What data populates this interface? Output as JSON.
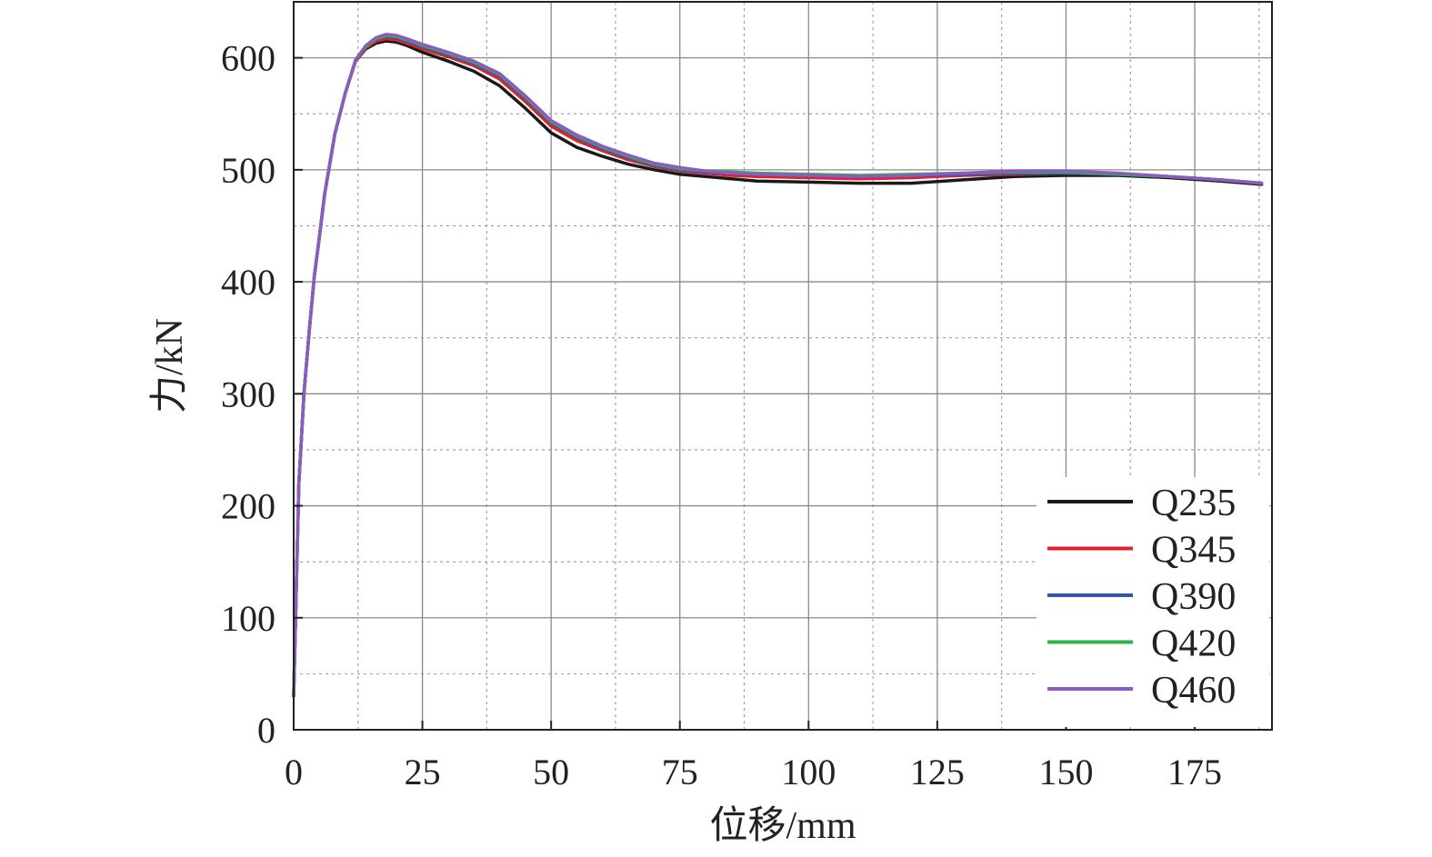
{
  "chart_data": {
    "type": "line",
    "xlabel": "位移/mm",
    "ylabel": "力/kN",
    "xlim": [
      0,
      190
    ],
    "ylim": [
      0,
      650
    ],
    "xticks": [
      0,
      25,
      50,
      75,
      100,
      125,
      150,
      175
    ],
    "yticks": [
      0,
      100,
      200,
      300,
      400,
      500,
      600
    ],
    "grid": true,
    "legend_position": "bottom-right",
    "x": [
      0,
      1,
      2,
      3,
      4,
      5,
      6,
      8,
      10,
      12,
      14,
      16,
      18,
      20,
      22,
      25,
      30,
      35,
      40,
      45,
      50,
      55,
      60,
      65,
      70,
      75,
      80,
      85,
      90,
      100,
      110,
      120,
      130,
      140,
      150,
      160,
      170,
      180,
      188
    ],
    "series": [
      {
        "name": "Q235",
        "color": "#1a1a1a",
        "values": [
          30,
          220,
          300,
          355,
          405,
          440,
          478,
          532,
          568,
          597,
          608,
          613,
          615,
          614,
          611,
          605,
          597,
          588,
          575,
          555,
          533,
          520,
          512,
          505,
          500,
          496,
          494,
          492,
          490,
          489,
          488,
          488,
          491,
          494,
          495,
          495,
          493,
          490,
          487
        ]
      },
      {
        "name": "Q345",
        "color": "#e0202a",
        "values": [
          30,
          220,
          300,
          355,
          405,
          440,
          478,
          532,
          568,
          597,
          609,
          615,
          617,
          616,
          613,
          608,
          601,
          593,
          581,
          561,
          539,
          526,
          517,
          509,
          503,
          499,
          497,
          495,
          494,
          493,
          492,
          493,
          495,
          496,
          497,
          496,
          494,
          491,
          488
        ]
      },
      {
        "name": "Q390",
        "color": "#2e56b5",
        "values": [
          30,
          220,
          300,
          355,
          405,
          440,
          478,
          532,
          568,
          598,
          610,
          617,
          619,
          618,
          615,
          610,
          603,
          595,
          584,
          564,
          542,
          529,
          519,
          511,
          504,
          500,
          498,
          497,
          496,
          495,
          494,
          495,
          496,
          497,
          497,
          496,
          494,
          491,
          488
        ]
      },
      {
        "name": "Q420",
        "color": "#2fb24a",
        "values": [
          30,
          220,
          300,
          355,
          405,
          440,
          478,
          532,
          568,
          598,
          610,
          617,
          620,
          619,
          616,
          611,
          604,
          596,
          585,
          565,
          543,
          530,
          520,
          512,
          505,
          501,
          499,
          498,
          497,
          496,
          495,
          496,
          497,
          498,
          498,
          496,
          494,
          491,
          488
        ]
      },
      {
        "name": "Q460",
        "color": "#8a5cc0",
        "values": [
          30,
          220,
          300,
          355,
          405,
          440,
          478,
          532,
          568,
          598,
          611,
          618,
          621,
          620,
          617,
          612,
          605,
          597,
          586,
          566,
          544,
          531,
          521,
          513,
          506,
          502,
          499,
          497,
          496,
          495,
          494,
          495,
          497,
          499,
          499,
          497,
          494,
          491,
          488
        ]
      }
    ]
  }
}
